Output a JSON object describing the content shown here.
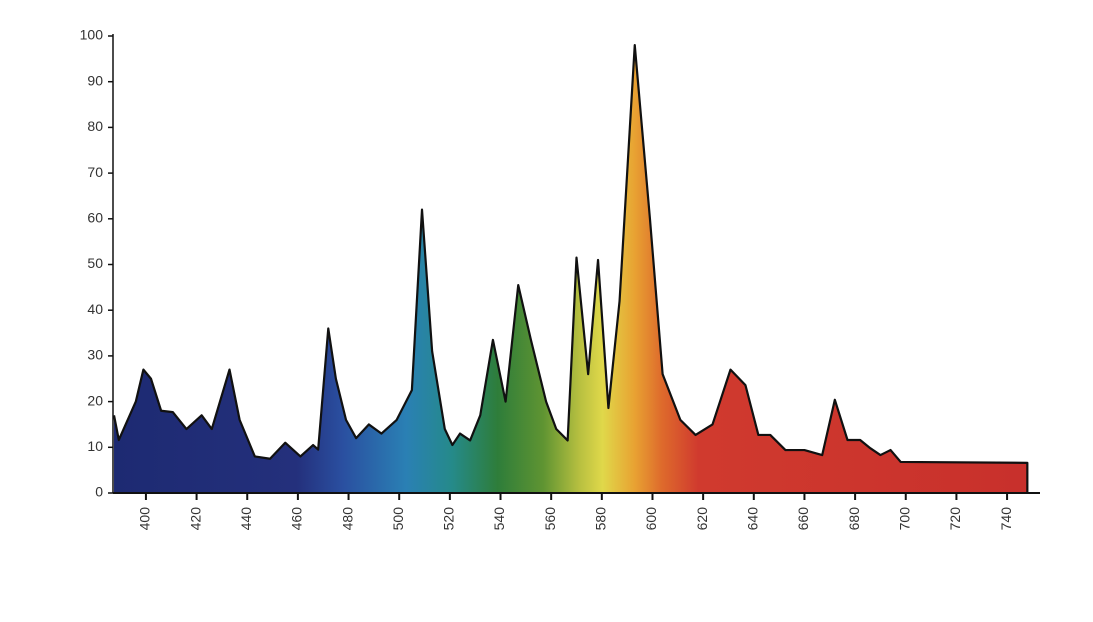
{
  "chart_data": {
    "type": "area",
    "x": [
      387.4,
      389.3,
      392,
      396,
      399,
      402,
      406,
      410.6,
      416,
      422,
      426,
      433,
      437,
      443,
      449,
      455,
      461,
      466,
      468,
      472,
      475,
      479,
      483,
      488,
      493,
      499,
      505,
      509,
      513,
      518,
      521,
      524,
      528,
      532,
      537,
      542,
      547,
      552,
      558,
      562,
      566.5,
      570,
      574.6,
      578.5,
      582.6,
      587,
      593,
      599,
      604,
      611,
      617,
      623.7,
      630.8,
      636.7,
      641.8,
      646.5,
      652.5,
      660,
      667,
      672,
      677,
      682,
      686,
      690,
      694,
      698,
      748
    ],
    "series": [
      {
        "values": [
          17,
          11.6,
          15,
          20,
          27,
          25,
          18,
          17.7,
          14,
          17,
          14,
          27,
          16,
          8,
          7.5,
          11,
          8,
          10.5,
          9.5,
          36,
          25,
          16,
          12,
          15,
          13,
          16,
          22.5,
          62,
          31,
          14,
          10.5,
          13,
          11.5,
          17,
          33.5,
          20,
          45.5,
          33.5,
          20,
          14,
          11.5,
          51.5,
          26,
          51,
          18.6,
          42,
          98,
          60,
          26,
          16,
          12.7,
          15,
          27,
          23.6,
          12.7,
          12.7,
          9.4,
          9.4,
          8.3,
          20.4,
          11.6,
          11.6,
          9.8,
          8.3,
          9.4,
          6.8,
          6.6
        ]
      }
    ],
    "xlim": [
      387,
      753
    ],
    "xticks": [
      400,
      420,
      440,
      460,
      480,
      500,
      520,
      540,
      560,
      580,
      600,
      620,
      640,
      660,
      680,
      700,
      720,
      740
    ],
    "ylim": [
      0,
      100
    ],
    "yticks": [
      0,
      10,
      20,
      30,
      40,
      50,
      60,
      70,
      80,
      90,
      100
    ]
  }
}
